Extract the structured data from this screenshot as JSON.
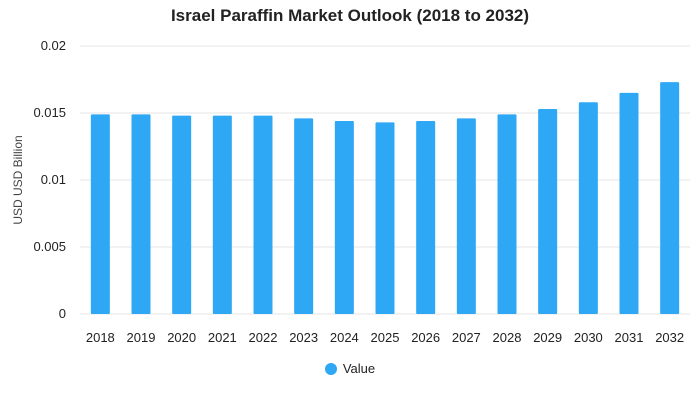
{
  "chart_data": {
    "type": "bar",
    "title": "Israel Paraffin Market Outlook (2018 to 2032)",
    "xlabel": "",
    "ylabel": "USD USD Billion",
    "categories": [
      "2018",
      "2019",
      "2020",
      "2021",
      "2022",
      "2023",
      "2024",
      "2025",
      "2026",
      "2027",
      "2028",
      "2029",
      "2030",
      "2031",
      "2032"
    ],
    "series": [
      {
        "name": "Value",
        "values": [
          0.0149,
          0.0149,
          0.0148,
          0.0148,
          0.0148,
          0.0146,
          0.0144,
          0.0143,
          0.0144,
          0.0146,
          0.0149,
          0.0153,
          0.0158,
          0.0165,
          0.0173
        ]
      }
    ],
    "ylim": [
      0,
      0.02
    ],
    "yticks": [
      "0",
      "0.005",
      "0.01",
      "0.015",
      "0.02"
    ],
    "ytick_values": [
      0,
      0.005,
      0.01,
      0.015,
      0.02
    ],
    "grid": true,
    "legend_position": "bottom",
    "colors": {
      "bar": "#2ea8f5",
      "grid": "#e6e6e6",
      "text": "#222222"
    }
  }
}
